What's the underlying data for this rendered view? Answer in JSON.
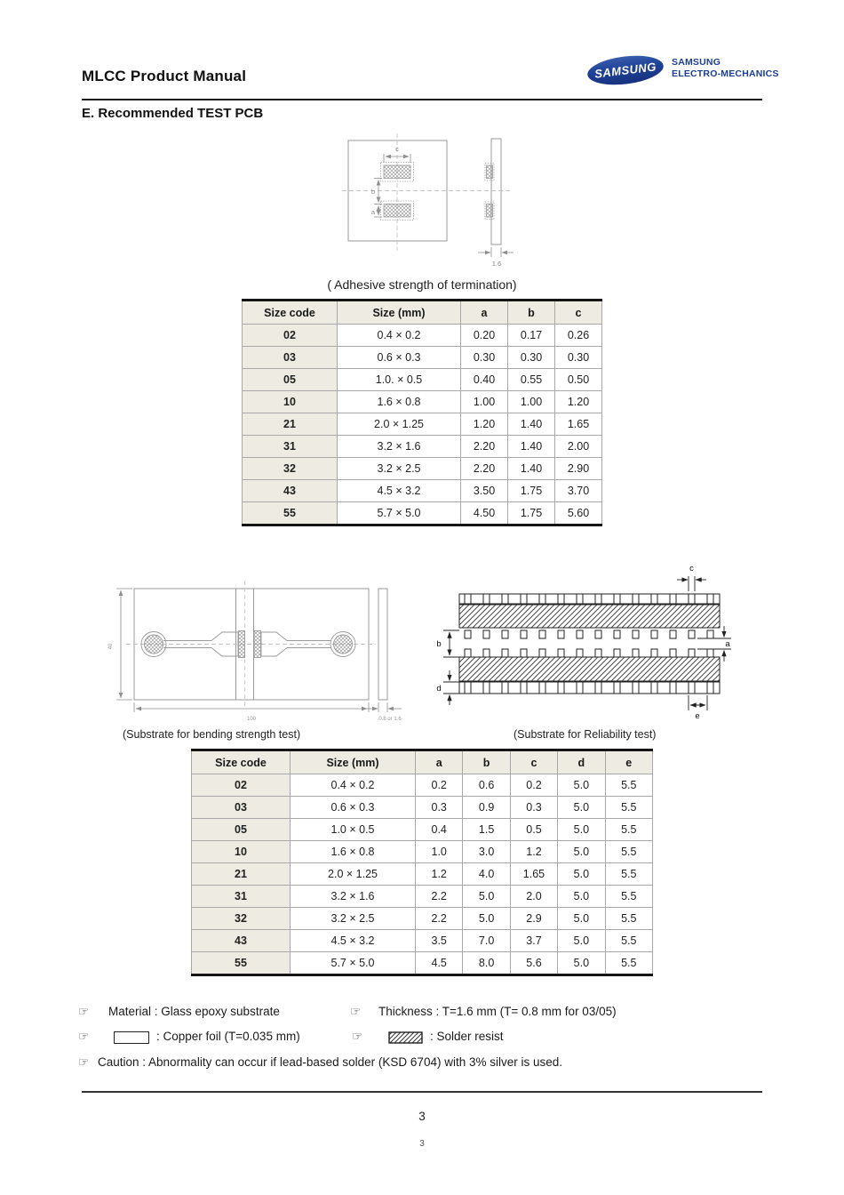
{
  "header": {
    "title": "MLCC Product Manual",
    "logo_text": "SAMSUNG",
    "brand_line1": "SAMSUNG",
    "brand_line2": "ELECTRO-MECHANICS"
  },
  "section_title": "E. Recommended TEST PCB",
  "diagram_pad": {
    "dim_c": "c",
    "dim_b": "b",
    "dim_a": "a",
    "dim_thickness": "1.6"
  },
  "table1": {
    "caption": "( Adhesive strength of termination)",
    "headers": [
      "Size code",
      "Size (mm)",
      "a",
      "b",
      "c"
    ],
    "rows": [
      [
        "02",
        "0.4 × 0.2",
        "0.20",
        "0.17",
        "0.26"
      ],
      [
        "03",
        "0.6 × 0.3",
        "0.30",
        "0.30",
        "0.30"
      ],
      [
        "05",
        "1.0. × 0.5",
        "0.40",
        "0.55",
        "0.50"
      ],
      [
        "10",
        "1.6 × 0.8",
        "1.00",
        "1.00",
        "1.20"
      ],
      [
        "21",
        "2.0 × 1.25",
        "1.20",
        "1.40",
        "1.65"
      ],
      [
        "31",
        "3.2 × 1.6",
        "2.20",
        "1.40",
        "2.00"
      ],
      [
        "32",
        "3.2 × 2.5",
        "2.20",
        "1.40",
        "2.90"
      ],
      [
        "43",
        "4.5 × 3.2",
        "3.50",
        "1.75",
        "3.70"
      ],
      [
        "55",
        "5.7 × 5.0",
        "4.50",
        "1.75",
        "5.60"
      ]
    ]
  },
  "diagram_bending": {
    "caption": "(Substrate for bending strength test)",
    "dim_height": "40",
    "dim_length": "100",
    "dim_thickness": "0.8 or 1.6"
  },
  "diagram_reliability": {
    "caption": "(Substrate for Reliability test)",
    "dim_a": "a",
    "dim_b": "b",
    "dim_c": "c",
    "dim_d": "d",
    "dim_e": "e"
  },
  "table2": {
    "headers": [
      "Size code",
      "Size (mm)",
      "a",
      "b",
      "c",
      "d",
      "e"
    ],
    "rows": [
      [
        "02",
        "0.4 × 0.2",
        "0.2",
        "0.6",
        "0.2",
        "5.0",
        "5.5"
      ],
      [
        "03",
        "0.6 × 0.3",
        "0.3",
        "0.9",
        "0.3",
        "5.0",
        "5.5"
      ],
      [
        "05",
        "1.0 × 0.5",
        "0.4",
        "1.5",
        "0.5",
        "5.0",
        "5.5"
      ],
      [
        "10",
        "1.6 × 0.8",
        "1.0",
        "3.0",
        "1.2",
        "5.0",
        "5.5"
      ],
      [
        "21",
        "2.0 × 1.25",
        "1.2",
        "4.0",
        "1.65",
        "5.0",
        "5.5"
      ],
      [
        "31",
        "3.2 × 1.6",
        "2.2",
        "5.0",
        "2.0",
        "5.0",
        "5.5"
      ],
      [
        "32",
        "3.2 × 2.5",
        "2.2",
        "5.0",
        "2.9",
        "5.0",
        "5.5"
      ],
      [
        "43",
        "4.5 × 3.2",
        "3.5",
        "7.0",
        "3.7",
        "5.0",
        "5.5"
      ],
      [
        "55",
        "5.7 × 5.0",
        "4.5",
        "8.0",
        "5.6",
        "5.0",
        "5.5"
      ]
    ]
  },
  "notes": {
    "pointer": "☞",
    "material": "Material : Glass epoxy substrate",
    "thickness": "Thickness : T=1.6 mm (T= 0.8 mm for 03/05)",
    "copper_label": ": Copper foil (T=0.035 mm)",
    "solder_label": ": Solder resist",
    "caution": "Caution : Abnormality can occur if lead-based solder (KSD 6704) with 3% silver is used."
  },
  "footer": {
    "page_number": "3",
    "page_number_small": "3"
  },
  "colors": {
    "brand_blue": "#1c3e91",
    "table_header_bg": "#eeece2",
    "border_dark": "#151515",
    "border_gray": "#a8a8a8"
  }
}
